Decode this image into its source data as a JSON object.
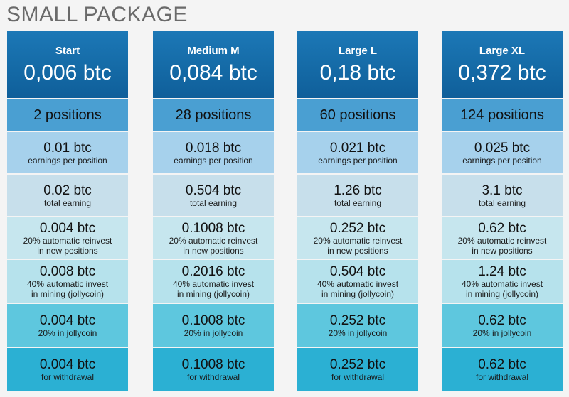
{
  "page": {
    "title": "SMALL PACKAGE"
  },
  "packages": [
    {
      "name": "Start",
      "price": "0,006 btc",
      "positions": "2 positions",
      "earnings_per_position": {
        "value": "0.01 btc",
        "label": "earnings per position"
      },
      "total_earning": {
        "value": "0.02 btc",
        "label": "total earning"
      },
      "reinvest": {
        "value": "0.004 btc",
        "label1": "20% automatic reinvest",
        "label2": "in new positions"
      },
      "mining": {
        "value": "0.008 btc",
        "label1": "40% automatic invest",
        "label2": "in mining (jollycoin)"
      },
      "jollycoin": {
        "value": "0.004 btc",
        "label": "20% in jollycoin"
      },
      "withdrawal": {
        "value": "0.004 btc",
        "label": "for withdrawal"
      }
    },
    {
      "name": "Medium M",
      "price": "0,084 btc",
      "positions": "28 positions",
      "earnings_per_position": {
        "value": "0.018 btc",
        "label": "earnings per position"
      },
      "total_earning": {
        "value": "0.504 btc",
        "label": "total earning"
      },
      "reinvest": {
        "value": "0.1008 btc",
        "label1": "20% automatic reinvest",
        "label2": "in new positions"
      },
      "mining": {
        "value": "0.2016 btc",
        "label1": "40% automatic invest",
        "label2": "in mining (jollycoin)"
      },
      "jollycoin": {
        "value": "0.1008 btc",
        "label": "20% in jollycoin"
      },
      "withdrawal": {
        "value": "0.1008 btc",
        "label": "for withdrawal"
      }
    },
    {
      "name": "Large L",
      "price": "0,18 btc",
      "positions": "60 positions",
      "earnings_per_position": {
        "value": "0.021 btc",
        "label": "earnings per position"
      },
      "total_earning": {
        "value": "1.26 btc",
        "label": "total earning"
      },
      "reinvest": {
        "value": "0.252 btc",
        "label1": "20% automatic reinvest",
        "label2": "in new positions"
      },
      "mining": {
        "value": "0.504 btc",
        "label1": "40% automatic invest",
        "label2": "in mining (jollycoin)"
      },
      "jollycoin": {
        "value": "0.252 btc",
        "label": "20% in jollycoin"
      },
      "withdrawal": {
        "value": "0.252 btc",
        "label": "for withdrawal"
      }
    },
    {
      "name": "Large XL",
      "price": "0,372 btc",
      "positions": "124 positions",
      "earnings_per_position": {
        "value": "0.025 btc",
        "label": "earnings per position"
      },
      "total_earning": {
        "value": "3.1 btc",
        "label": "total earning"
      },
      "reinvest": {
        "value": "0.62 btc",
        "label1": "20% automatic reinvest",
        "label2": "in new positions"
      },
      "mining": {
        "value": "1.24 btc",
        "label1": "40% automatic invest",
        "label2": "in mining (jollycoin)"
      },
      "jollycoin": {
        "value": "0.62 btc",
        "label": "20% in jollycoin"
      },
      "withdrawal": {
        "value": "0.62 btc",
        "label": "for withdrawal"
      }
    }
  ]
}
